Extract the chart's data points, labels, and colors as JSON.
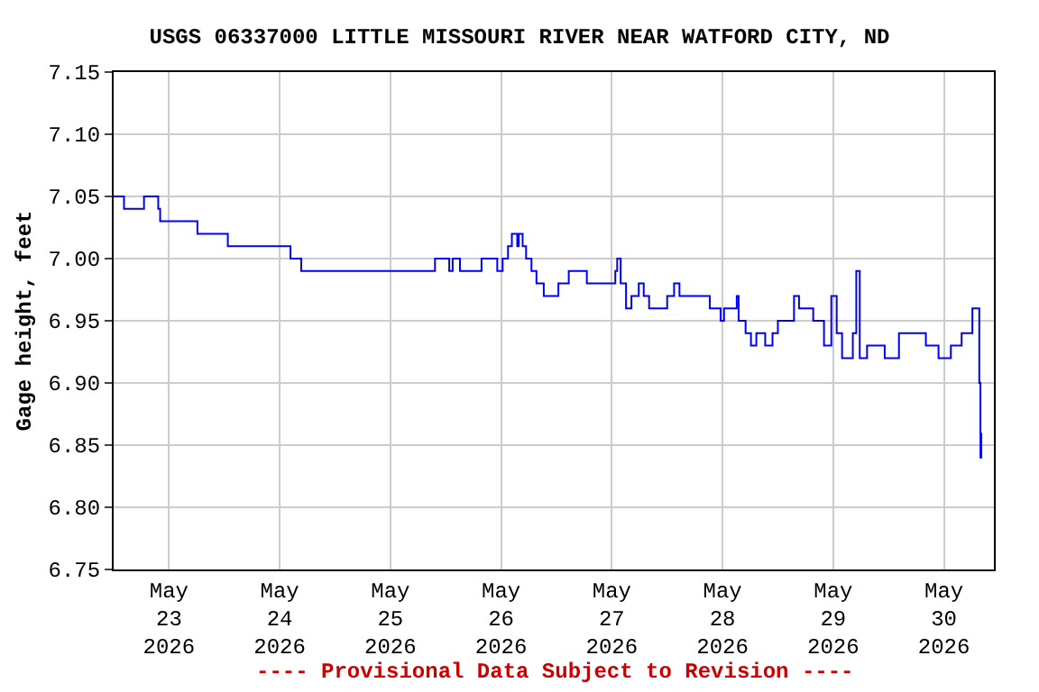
{
  "chart_data": {
    "type": "step",
    "title": "USGS 06337000 LITTLE MISSOURI RIVER NEAR WATFORD CITY, ND",
    "ylabel": "Gage height, feet",
    "annotations": [
      "---- Provisional Data Subject to Revision ----"
    ],
    "xlim": [
      "2026-05-22T12:00",
      "2026-05-30T10:50"
    ],
    "xticks": [
      {
        "value": "2026-05-23",
        "label": "May\n23\n2026"
      },
      {
        "value": "2026-05-24",
        "label": "May\n24\n2026"
      },
      {
        "value": "2026-05-25",
        "label": "May\n25\n2026"
      },
      {
        "value": "2026-05-26",
        "label": "May\n26\n2026"
      },
      {
        "value": "2026-05-27",
        "label": "May\n27\n2026"
      },
      {
        "value": "2026-05-28",
        "label": "May\n28\n2026"
      },
      {
        "value": "2026-05-29",
        "label": "May\n29\n2026"
      },
      {
        "value": "2026-05-30",
        "label": "May\n30\n2026"
      }
    ],
    "ylim": [
      6.75,
      7.15
    ],
    "yticks": [
      {
        "value": 6.75,
        "label": "6.75"
      },
      {
        "value": 6.8,
        "label": "6.80"
      },
      {
        "value": 6.85,
        "label": "6.85"
      },
      {
        "value": 6.9,
        "label": "6.90"
      },
      {
        "value": 6.95,
        "label": "6.95"
      },
      {
        "value": 7.0,
        "label": "7.00"
      },
      {
        "value": 7.05,
        "label": "7.05"
      },
      {
        "value": 7.1,
        "label": "7.10"
      },
      {
        "value": 7.15,
        "label": "7.15"
      }
    ],
    "grid": true,
    "marker": "none",
    "line_style": "solid",
    "series": [
      {
        "color": "#0000ff",
        "x": [
          "2026-05-22T12:00",
          "2026-05-22T14:15",
          "2026-05-22T18:35",
          "2026-05-22T21:40",
          "2026-05-22T22:05",
          "2026-05-23T06:10",
          "2026-05-23T12:45",
          "2026-05-24T02:20",
          "2026-05-24T04:40",
          "2026-05-25T09:40",
          "2026-05-25T12:45",
          "2026-05-25T13:30",
          "2026-05-25T15:05",
          "2026-05-25T19:45",
          "2026-05-25T23:10",
          "2026-05-26T00:20",
          "2026-05-26T01:30",
          "2026-05-26T02:20",
          "2026-05-26T03:30",
          "2026-05-26T03:50",
          "2026-05-26T04:40",
          "2026-05-26T05:25",
          "2026-05-26T06:35",
          "2026-05-26T07:40",
          "2026-05-26T09:15",
          "2026-05-26T12:25",
          "2026-05-26T14:40",
          "2026-05-26T18:35",
          "2026-05-27T00:45",
          "2026-05-27T01:10",
          "2026-05-27T01:55",
          "2026-05-27T03:05",
          "2026-05-27T04:15",
          "2026-05-27T05:50",
          "2026-05-27T06:55",
          "2026-05-27T08:05",
          "2026-05-27T12:00",
          "2026-05-27T13:30",
          "2026-05-27T14:40",
          "2026-05-27T21:15",
          "2026-05-27T23:35",
          "2026-05-28T00:20",
          "2026-05-28T03:05",
          "2026-05-28T03:30",
          "2026-05-28T05:00",
          "2026-05-28T06:10",
          "2026-05-28T07:20",
          "2026-05-28T09:15",
          "2026-05-28T10:50",
          "2026-05-28T12:00",
          "2026-05-28T15:30",
          "2026-05-28T16:35",
          "2026-05-28T19:40",
          "2026-05-28T22:00",
          "2026-05-28T23:35",
          "2026-05-29T00:45",
          "2026-05-29T01:55",
          "2026-05-29T04:15",
          "2026-05-29T05:00",
          "2026-05-29T05:45",
          "2026-05-29T07:20",
          "2026-05-29T11:10",
          "2026-05-29T14:15",
          "2026-05-29T20:05",
          "2026-05-29T22:50",
          "2026-05-30T01:30",
          "2026-05-30T03:50",
          "2026-05-30T06:10",
          "2026-05-30T07:40",
          "2026-05-30T07:55",
          "2026-05-30T08:05"
        ],
        "values": [
          7.05,
          7.04,
          7.05,
          7.04,
          7.03,
          7.02,
          7.01,
          7.0,
          6.99,
          7.0,
          6.99,
          7.0,
          6.99,
          7.0,
          6.99,
          7.0,
          7.01,
          7.02,
          7.01,
          7.02,
          7.01,
          7.0,
          6.99,
          6.98,
          6.97,
          6.98,
          6.99,
          6.98,
          6.99,
          7.0,
          6.98,
          6.96,
          6.97,
          6.98,
          6.97,
          6.96,
          6.97,
          6.98,
          6.97,
          6.96,
          6.95,
          6.96,
          6.97,
          6.95,
          6.94,
          6.93,
          6.94,
          6.93,
          6.94,
          6.95,
          6.97,
          6.96,
          6.95,
          6.93,
          6.97,
          6.94,
          6.92,
          6.94,
          6.99,
          6.92,
          6.93,
          6.92,
          6.94,
          6.93,
          6.92,
          6.93,
          6.94,
          6.96,
          6.9,
          6.84,
          6.86
        ]
      }
    ]
  }
}
